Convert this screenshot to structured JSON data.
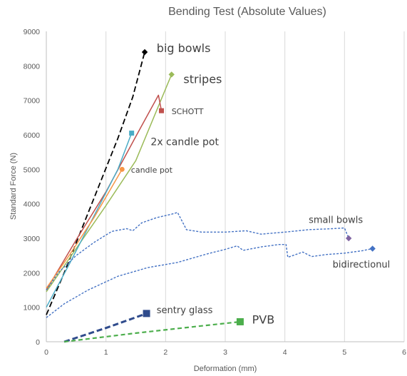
{
  "chart_data": {
    "type": "line",
    "title": "Bending Test (Absolute Values)",
    "xlabel": "Deformation (mm)",
    "ylabel": "Standard Force (N)",
    "xlim": [
      0,
      6
    ],
    "ylim": [
      0,
      9000
    ],
    "xticks": [
      "0",
      "1",
      "2",
      "3",
      "4",
      "5",
      "6"
    ],
    "yticks": [
      "0",
      "1000",
      "2000",
      "3000",
      "4000",
      "5000",
      "6000",
      "7000",
      "8000",
      "9000"
    ],
    "grid": "vertical",
    "legend": "none",
    "series": [
      {
        "name": "big bowls",
        "color": "#000000",
        "dash": "8,4",
        "width": 1.8,
        "marker": "diamond",
        "points": [
          [
            0,
            780
          ],
          [
            0.3,
            2000
          ],
          [
            0.6,
            3300
          ],
          [
            0.9,
            4600
          ],
          [
            1.2,
            5900
          ],
          [
            1.45,
            7100
          ],
          [
            1.65,
            8400
          ]
        ]
      },
      {
        "name": "stripes",
        "color": "#9bbb59",
        "dash": "",
        "width": 1.5,
        "marker": "diamond",
        "points": [
          [
            0,
            1450
          ],
          [
            0.5,
            2700
          ],
          [
            1.0,
            3950
          ],
          [
            1.5,
            5250
          ],
          [
            2.1,
            7750
          ]
        ]
      },
      {
        "name": "SCHOTT",
        "color": "#c0504d",
        "dash": "",
        "width": 1.5,
        "marker": "square",
        "points": [
          [
            0,
            1500
          ],
          [
            0.5,
            2950
          ],
          [
            1.0,
            4350
          ],
          [
            1.5,
            5950
          ],
          [
            1.88,
            7150
          ],
          [
            1.93,
            6700
          ]
        ]
      },
      {
        "name": "2x candle pot",
        "color": "#4bacc6",
        "dash": "",
        "width": 1.5,
        "marker": "square",
        "points": [
          [
            0,
            1000
          ],
          [
            0.4,
            2300
          ],
          [
            0.8,
            3650
          ],
          [
            1.2,
            5000
          ],
          [
            1.43,
            6050
          ]
        ]
      },
      {
        "name": "candle pot",
        "color": "#f79646",
        "dash": "",
        "width": 1.5,
        "marker": "circle",
        "points": [
          [
            0,
            1550
          ],
          [
            0.4,
            2550
          ],
          [
            0.8,
            3600
          ],
          [
            1.27,
            5000
          ]
        ]
      },
      {
        "name": "small bowls",
        "color": "#4472c4",
        "dash": "3,2",
        "width": 1.4,
        "marker": "diamond",
        "marker_color": "#8064a2",
        "points": [
          [
            0,
            1500
          ],
          [
            0.2,
            2000
          ],
          [
            0.5,
            2500
          ],
          [
            0.8,
            2880
          ],
          [
            1.1,
            3200
          ],
          [
            1.35,
            3280
          ],
          [
            1.45,
            3220
          ],
          [
            1.6,
            3450
          ],
          [
            1.85,
            3600
          ],
          [
            2.1,
            3700
          ],
          [
            2.2,
            3750
          ],
          [
            2.3,
            3420
          ],
          [
            2.35,
            3250
          ],
          [
            2.6,
            3180
          ],
          [
            3.0,
            3180
          ],
          [
            3.35,
            3220
          ],
          [
            3.6,
            3120
          ],
          [
            4.0,
            3180
          ],
          [
            4.4,
            3250
          ],
          [
            4.8,
            3280
          ],
          [
            5.0,
            3300
          ],
          [
            5.07,
            3000
          ]
        ]
      },
      {
        "name": "bidirectional",
        "color": "#4472c4",
        "dash": "3,2",
        "width": 1.4,
        "marker": "diamond",
        "points": [
          [
            0,
            700
          ],
          [
            0.3,
            1100
          ],
          [
            0.7,
            1500
          ],
          [
            1.2,
            1900
          ],
          [
            1.7,
            2150
          ],
          [
            2.2,
            2300
          ],
          [
            2.7,
            2550
          ],
          [
            3.0,
            2680
          ],
          [
            3.2,
            2780
          ],
          [
            3.3,
            2650
          ],
          [
            3.6,
            2750
          ],
          [
            3.9,
            2820
          ],
          [
            4.02,
            2820
          ],
          [
            4.05,
            2450
          ],
          [
            4.3,
            2600
          ],
          [
            4.45,
            2470
          ],
          [
            4.7,
            2530
          ],
          [
            5.0,
            2570
          ],
          [
            5.3,
            2640
          ],
          [
            5.47,
            2700
          ]
        ]
      },
      {
        "name": "sentry glass",
        "color": "#2f4b8c",
        "dash": "8,4",
        "width": 3,
        "marker": "square",
        "points": [
          [
            0.3,
            0
          ],
          [
            1.0,
            400
          ],
          [
            1.68,
            820
          ]
        ]
      },
      {
        "name": "PVB",
        "color": "#4cae4c",
        "dash": "6,4",
        "width": 2.2,
        "marker": "square",
        "points": [
          [
            0.3,
            0
          ],
          [
            1.5,
            250
          ],
          [
            2.5,
            440
          ],
          [
            3.25,
            580
          ]
        ]
      }
    ],
    "annotations": [
      {
        "text": "big bowls",
        "x": 1.85,
        "y": 8400,
        "size": 16
      },
      {
        "text": "stripes",
        "x": 2.3,
        "y": 7500,
        "size": 16
      },
      {
        "text": "SCHOTT",
        "x": 2.1,
        "y": 6600,
        "size": 11
      },
      {
        "text": "2x candle pot",
        "x": 1.75,
        "y": 5700,
        "size": 14
      },
      {
        "text": "candle pot",
        "x": 1.42,
        "y": 4900,
        "size": 11
      },
      {
        "text": "small bowls",
        "x": 4.4,
        "y": 3450,
        "size": 13
      },
      {
        "text": "bidirectionul",
        "x": 4.8,
        "y": 2150,
        "size": 13
      },
      {
        "text": "sentry glass",
        "x": 1.85,
        "y": 830,
        "size": 13
      },
      {
        "text": "PVB",
        "x": 3.45,
        "y": 530,
        "size": 16
      }
    ]
  }
}
